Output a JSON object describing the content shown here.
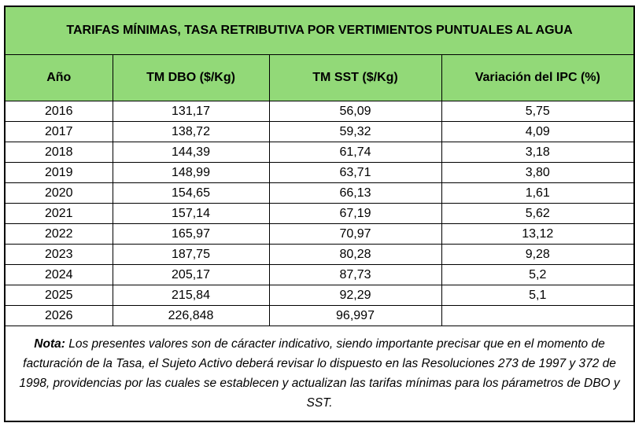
{
  "title": "TARIFAS MÍNIMAS, TASA RETRIBUTIVA POR VERTIMIENTOS PUNTUALES AL AGUA",
  "headers": [
    "Año",
    "TM DBO ($/Kg)",
    "TM SST ($/Kg)",
    "Variación del IPC (%)"
  ],
  "rows": [
    [
      "2016",
      "131,17",
      "56,09",
      "5,75"
    ],
    [
      "2017",
      "138,72",
      "59,32",
      "4,09"
    ],
    [
      "2018",
      "144,39",
      "61,74",
      "3,18"
    ],
    [
      "2019",
      "148,99",
      "63,71",
      "3,80"
    ],
    [
      "2020",
      "154,65",
      "66,13",
      "1,61"
    ],
    [
      "2021",
      "157,14",
      "67,19",
      "5,62"
    ],
    [
      "2022",
      "165,97",
      "70,97",
      "13,12"
    ],
    [
      "2023",
      "187,75",
      "80,28",
      "9,28"
    ],
    [
      "2024",
      "205,17",
      "87,73",
      "5,2"
    ],
    [
      "2025",
      "215,84",
      "92,29",
      "5,1"
    ],
    [
      "2026",
      "226,848",
      "96,997",
      ""
    ]
  ],
  "note": {
    "label": "Nota:",
    "text": " Los presentes valores son de cáracter indicativo, siendo importante precisar que en el momento de facturación de la Tasa, el Sujeto Activo deberá revisar lo dispuesto en las Resoluciones 273 de 1997 y 372 de 1998, providencias por las cuales se establecen y actualizan las tarifas mínimas para los párametros de DBO y SST."
  },
  "colors": {
    "header_bg": "#92D978"
  }
}
